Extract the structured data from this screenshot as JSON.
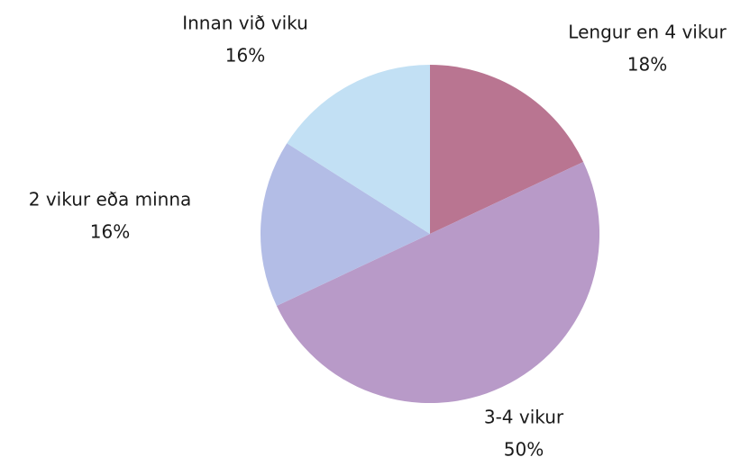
{
  "chart_data": {
    "type": "pie",
    "categories": [
      "Lengur en 4 vikur",
      "3-4 vikur",
      "2 vikur eða minna",
      "Innan við viku"
    ],
    "values": [
      18,
      50,
      16,
      16
    ],
    "value_labels": [
      "18%",
      "50%",
      "16%",
      "16%"
    ],
    "colors": [
      "#b97591",
      "#b89ac8",
      "#b3bde6",
      "#c2e0f4"
    ]
  }
}
